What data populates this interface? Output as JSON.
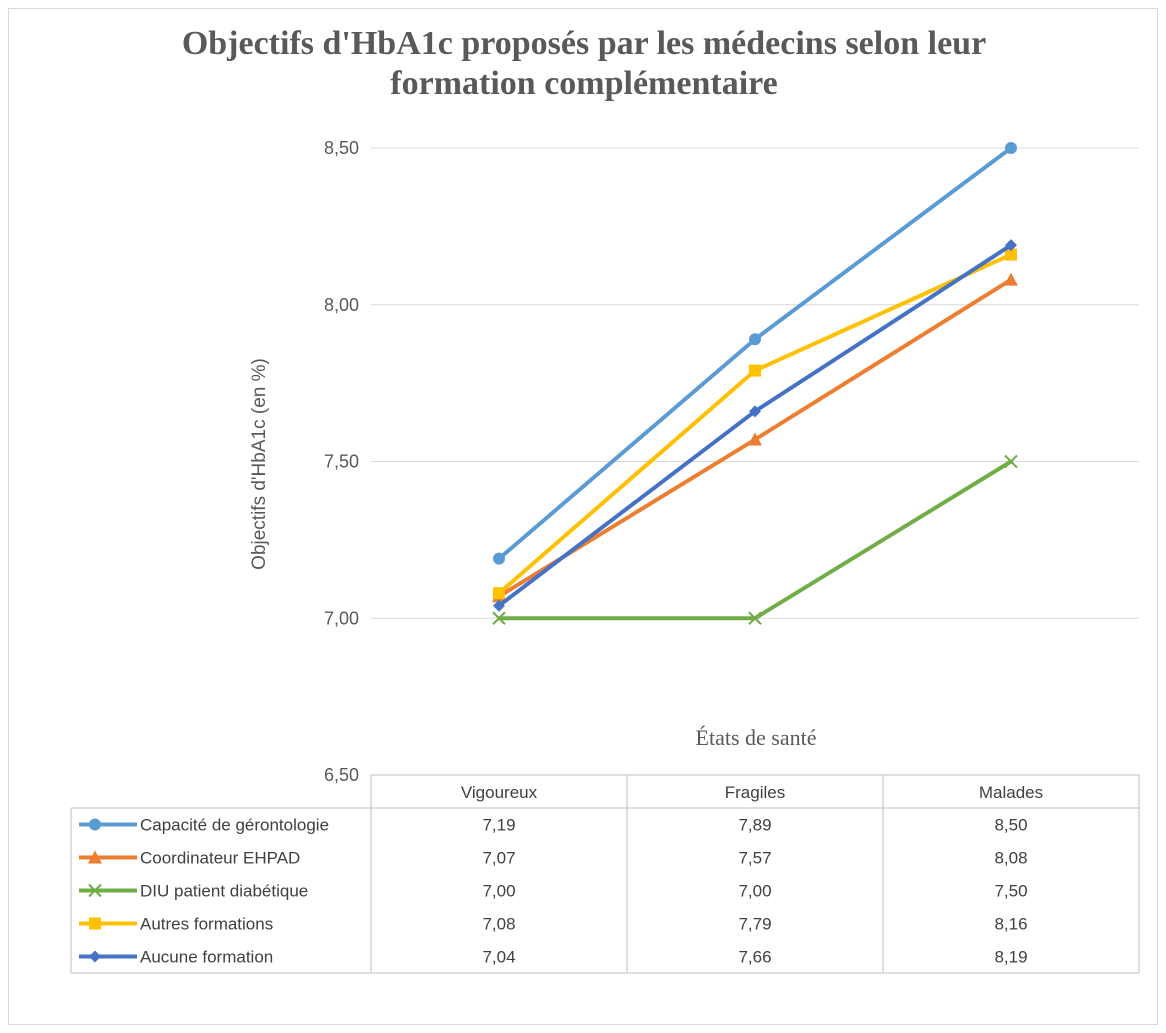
{
  "chart_data": {
    "type": "line",
    "title": "Objectifs d'HbA1c proposés par les médecins selon leur formation complémentaire",
    "title_lines": [
      "Objectifs d'HbA1c proposés par les médecins selon leur",
      "formation complémentaire"
    ],
    "xlabel": "États de santé",
    "ylabel": "Objectifs d'HbA1c (en %)",
    "categories": [
      "Vigoureux",
      "Fragiles",
      "Malades"
    ],
    "ylim": [
      6.5,
      8.5
    ],
    "yticks": [
      "6,50",
      "7,00",
      "7,50",
      "8,00",
      "8,50"
    ],
    "grid": true,
    "legend": "data-table",
    "series": [
      {
        "name": "Capacité de gérontologie",
        "values": [
          7.19,
          7.89,
          8.5
        ],
        "labels": [
          "7,19",
          "7,89",
          "8,50"
        ],
        "color": "#5B9BD5",
        "marker": "circle"
      },
      {
        "name": "Coordinateur EHPAD",
        "values": [
          7.07,
          7.57,
          8.08
        ],
        "labels": [
          "7,07",
          "7,57",
          "8,08"
        ],
        "color": "#ED7D31",
        "marker": "triangle"
      },
      {
        "name": "DIU patient diabétique",
        "values": [
          7.0,
          7.0,
          7.5
        ],
        "labels": [
          "7,00",
          "7,00",
          "7,50"
        ],
        "color": "#70AD47",
        "marker": "x"
      },
      {
        "name": "Autres formations",
        "values": [
          7.08,
          7.79,
          8.16
        ],
        "labels": [
          "7,08",
          "7,79",
          "8,16"
        ],
        "color": "#FFC000",
        "marker": "square"
      },
      {
        "name": "Aucune formation",
        "values": [
          7.04,
          7.66,
          8.19
        ],
        "labels": [
          "7,04",
          "7,66",
          "8,19"
        ],
        "color": "#4472C4",
        "marker": "diamond"
      }
    ]
  }
}
